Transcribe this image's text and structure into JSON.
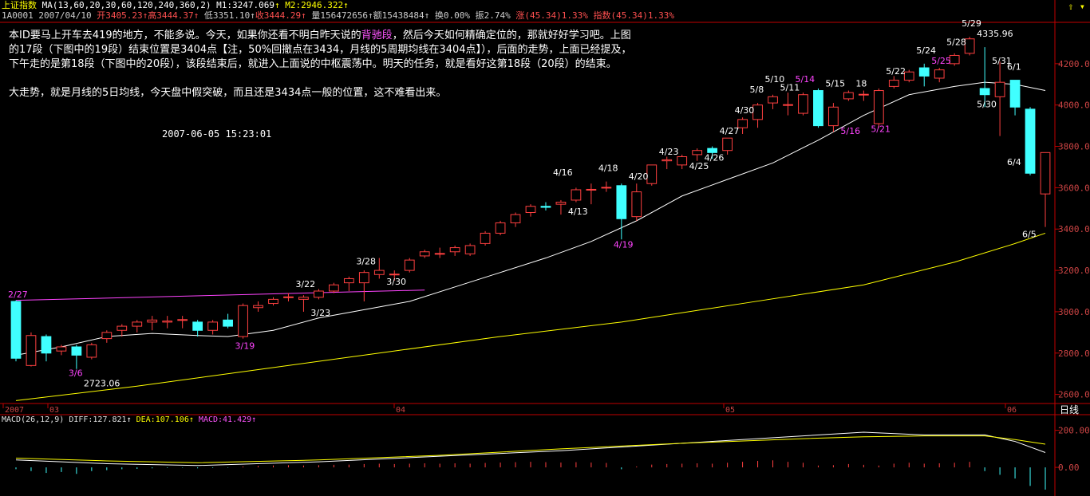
{
  "header": {
    "index_name": "上证指数",
    "ma_label": "MA(13,60,20,30,60,120,240,360,2)",
    "m1": "M1:3247.069",
    "m2": "M2:2946.322",
    "code": "1A0001",
    "date": "2007/04/10",
    "open": "开3405.23",
    "high": "高3444.37",
    "low": "低3351.10",
    "close": "收3444.29",
    "volume": "量156472656",
    "amount": "额15438484",
    "turnover": "换0.00%",
    "amplitude": "振2.74%",
    "change": "涨(45.34)1.33%",
    "index_change": "指数(45.34)1.33%"
  },
  "commentary": {
    "p1_a": "本ID要马上开车去419的地方，不能多说。今天，如果你还看不明白昨天说的",
    "p1_hl": "背驰段",
    "p1_b": "，然后今天如何精确定位的，那就好好学习吧。上图的17段（下图中的19段）结束位置是3404点【注，50%回撤点在3434，月线的5周期均线在3404点】），后面的走势，上面已经提及，下午走的是第18段（下图中的20段），该段结束后，就进入上面说的中枢震荡中。明天的任务，就是看好这第18段（20段）的结束。",
    "p2": "大走势，就是月线的5日均线，今天盘中假突破，而且还是3434点一般的位置，这不难看出来。",
    "timestamp": "2007-06-05 15:23:01"
  },
  "macd_header": {
    "label": "MACD(26,12,9)",
    "diff": "DIFF:127.821",
    "dea": "DEA:107.106",
    "macd": "MACD:41.429"
  },
  "period_label": "日线",
  "colors": {
    "up": "#ff4040",
    "down": "#40ffff",
    "ma_white": "#ffffff",
    "ma_yellow": "#ffff00",
    "trendline": "#ff44ff",
    "axis": "#c00000"
  },
  "chart_data": {
    "type": "candlestick",
    "ylim": [
      2560,
      4400
    ],
    "y_ticks": [
      2600,
      2800,
      3000,
      3200,
      3400,
      3600,
      3800,
      4000,
      4200
    ],
    "y_tick_labels": [
      "2600.00",
      "2800.00",
      "3000.00",
      "3200.00",
      "3400.00",
      "3600.00",
      "3800.00",
      "4000.00",
      "4200.00"
    ],
    "x_labels": [
      "2007",
      "03",
      "04",
      "05",
      "06"
    ],
    "candles": [
      {
        "o": 3050,
        "h": 3055,
        "l": 2760,
        "c": 2775
      },
      {
        "o": 2740,
        "h": 2900,
        "l": 2735,
        "c": 2885
      },
      {
        "o": 2880,
        "h": 2890,
        "l": 2760,
        "c": 2800
      },
      {
        "o": 2810,
        "h": 2840,
        "l": 2790,
        "c": 2830
      },
      {
        "o": 2830,
        "h": 2840,
        "l": 2723,
        "c": 2790
      },
      {
        "o": 2780,
        "h": 2850,
        "l": 2770,
        "c": 2840
      },
      {
        "o": 2870,
        "h": 2910,
        "l": 2850,
        "c": 2900
      },
      {
        "o": 2910,
        "h": 2940,
        "l": 2880,
        "c": 2930
      },
      {
        "o": 2930,
        "h": 2960,
        "l": 2900,
        "c": 2950
      },
      {
        "o": 2950,
        "h": 2980,
        "l": 2910,
        "c": 2960
      },
      {
        "o": 2950,
        "h": 2980,
        "l": 2920,
        "c": 2955
      },
      {
        "o": 2960,
        "h": 2980,
        "l": 2920,
        "c": 2962
      },
      {
        "o": 2950,
        "h": 2960,
        "l": 2880,
        "c": 2910
      },
      {
        "o": 2910,
        "h": 2960,
        "l": 2890,
        "c": 2950
      },
      {
        "o": 2960,
        "h": 2990,
        "l": 2920,
        "c": 2930
      },
      {
        "o": 2880,
        "h": 3040,
        "l": 2870,
        "c": 3030
      },
      {
        "o": 3020,
        "h": 3050,
        "l": 3000,
        "c": 3030
      },
      {
        "o": 3040,
        "h": 3070,
        "l": 3030,
        "c": 3060
      },
      {
        "o": 3070,
        "h": 3090,
        "l": 3050,
        "c": 3072
      },
      {
        "o": 3060,
        "h": 3080,
        "l": 3000,
        "c": 3070
      },
      {
        "o": 3070,
        "h": 3110,
        "l": 3060,
        "c": 3100
      },
      {
        "o": 3100,
        "h": 3140,
        "l": 3090,
        "c": 3130
      },
      {
        "o": 3140,
        "h": 3170,
        "l": 3100,
        "c": 3160
      },
      {
        "o": 3140,
        "h": 3200,
        "l": 3050,
        "c": 3190
      },
      {
        "o": 3180,
        "h": 3260,
        "l": 3160,
        "c": 3200
      },
      {
        "o": 3180,
        "h": 3200,
        "l": 3150,
        "c": 3182
      },
      {
        "o": 3200,
        "h": 3260,
        "l": 3190,
        "c": 3250
      },
      {
        "o": 3270,
        "h": 3300,
        "l": 3260,
        "c": 3290
      },
      {
        "o": 3280,
        "h": 3310,
        "l": 3260,
        "c": 3282
      },
      {
        "o": 3290,
        "h": 3320,
        "l": 3270,
        "c": 3310
      },
      {
        "o": 3280,
        "h": 3330,
        "l": 3270,
        "c": 3320
      },
      {
        "o": 3330,
        "h": 3390,
        "l": 3320,
        "c": 3380
      },
      {
        "o": 3380,
        "h": 3440,
        "l": 3370,
        "c": 3430
      },
      {
        "o": 3430,
        "h": 3480,
        "l": 3410,
        "c": 3470
      },
      {
        "o": 3480,
        "h": 3520,
        "l": 3460,
        "c": 3510
      },
      {
        "o": 3510,
        "h": 3530,
        "l": 3490,
        "c": 3505
      },
      {
        "o": 3520,
        "h": 3540,
        "l": 3470,
        "c": 3530
      },
      {
        "o": 3540,
        "h": 3600,
        "l": 3530,
        "c": 3590
      },
      {
        "o": 3590,
        "h": 3620,
        "l": 3520,
        "c": 3592
      },
      {
        "o": 3600,
        "h": 3630,
        "l": 3580,
        "c": 3602
      },
      {
        "o": 3610,
        "h": 3620,
        "l": 3350,
        "c": 3450
      },
      {
        "o": 3460,
        "h": 3620,
        "l": 3440,
        "c": 3580
      },
      {
        "o": 3620,
        "h": 3710,
        "l": 3610,
        "c": 3710
      },
      {
        "o": 3730,
        "h": 3750,
        "l": 3690,
        "c": 3735
      },
      {
        "o": 3710,
        "h": 3760,
        "l": 3690,
        "c": 3750
      },
      {
        "o": 3760,
        "h": 3790,
        "l": 3730,
        "c": 3780
      },
      {
        "o": 3790,
        "h": 3800,
        "l": 3740,
        "c": 3770
      },
      {
        "o": 3780,
        "h": 3840,
        "l": 3760,
        "c": 3840
      },
      {
        "o": 3890,
        "h": 3940,
        "l": 3860,
        "c": 3930
      },
      {
        "o": 3930,
        "h": 4010,
        "l": 3890,
        "c": 4000
      },
      {
        "o": 4010,
        "h": 4050,
        "l": 3980,
        "c": 4040
      },
      {
        "o": 4000,
        "h": 4060,
        "l": 3950,
        "c": 4002
      },
      {
        "o": 3960,
        "h": 4060,
        "l": 3950,
        "c": 4050
      },
      {
        "o": 4070,
        "h": 4080,
        "l": 3890,
        "c": 3900
      },
      {
        "o": 3900,
        "h": 4010,
        "l": 3870,
        "c": 3990
      },
      {
        "o": 4030,
        "h": 4070,
        "l": 4020,
        "c": 4060
      },
      {
        "o": 4050,
        "h": 4070,
        "l": 4020,
        "c": 4052
      },
      {
        "o": 3910,
        "h": 4080,
        "l": 3890,
        "c": 4070
      },
      {
        "o": 4090,
        "h": 4140,
        "l": 4080,
        "c": 4120
      },
      {
        "o": 4120,
        "h": 4170,
        "l": 4110,
        "c": 4160
      },
      {
        "o": 4180,
        "h": 4200,
        "l": 4090,
        "c": 4140
      },
      {
        "o": 4130,
        "h": 4180,
        "l": 4110,
        "c": 4170
      },
      {
        "o": 4200,
        "h": 4250,
        "l": 4190,
        "c": 4240
      },
      {
        "o": 4250,
        "h": 4330,
        "l": 4240,
        "c": 4320
      },
      {
        "o": 4080,
        "h": 4280,
        "l": 3990,
        "c": 4050
      },
      {
        "o": 4040,
        "h": 4210,
        "l": 3850,
        "c": 4110
      },
      {
        "o": 4120,
        "h": 4120,
        "l": 3950,
        "c": 3990
      },
      {
        "o": 3980,
        "h": 3990,
        "l": 3660,
        "c": 3670
      },
      {
        "o": 3570,
        "h": 3770,
        "l": 3410,
        "c": 3770
      }
    ],
    "ma_white": [
      [
        0,
        2790
      ],
      [
        3,
        2830
      ],
      [
        6,
        2880
      ],
      [
        9,
        2895
      ],
      [
        12,
        2885
      ],
      [
        14,
        2880
      ],
      [
        17,
        2910
      ],
      [
        20,
        2970
      ],
      [
        23,
        3010
      ],
      [
        26,
        3050
      ],
      [
        29,
        3120
      ],
      [
        32,
        3190
      ],
      [
        35,
        3260
      ],
      [
        38,
        3340
      ],
      [
        41,
        3440
      ],
      [
        44,
        3560
      ],
      [
        47,
        3640
      ],
      [
        50,
        3720
      ],
      [
        53,
        3830
      ],
      [
        56,
        3950
      ],
      [
        59,
        4050
      ],
      [
        62,
        4090
      ],
      [
        64,
        4110
      ],
      [
        66,
        4100
      ],
      [
        68,
        4070
      ]
    ],
    "ma_yellow": [
      [
        0,
        2570
      ],
      [
        8,
        2640
      ],
      [
        16,
        2720
      ],
      [
        24,
        2800
      ],
      [
        32,
        2880
      ],
      [
        40,
        2950
      ],
      [
        48,
        3040
      ],
      [
        56,
        3130
      ],
      [
        62,
        3240
      ],
      [
        66,
        3330
      ],
      [
        68,
        3380
      ]
    ],
    "trendline": [
      [
        0,
        3055
      ],
      [
        27,
        3105
      ]
    ],
    "annotations": [
      {
        "i": 0,
        "text": "2/27",
        "y": 3070,
        "color": "#ff44ff"
      },
      {
        "i": 4,
        "text": "3/6",
        "y": 2690,
        "color": "#ff44ff"
      },
      {
        "i": 5,
        "text": "2723.06",
        "y": 2640,
        "color": "#ffffff"
      },
      {
        "i": 15,
        "text": "3/19",
        "y": 2820,
        "color": "#ff44ff"
      },
      {
        "i": 19,
        "text": "3/22",
        "y": 3120,
        "color": "#ffffff"
      },
      {
        "i": 20,
        "text": "3/23",
        "y": 2980,
        "color": "#ffffff"
      },
      {
        "i": 23,
        "text": "3/28",
        "y": 3230,
        "color": "#ffffff"
      },
      {
        "i": 25,
        "text": "3/30",
        "y": 3130,
        "color": "#ffffff"
      },
      {
        "i": 37,
        "text": "4/13",
        "y": 3470,
        "color": "#ffffff"
      },
      {
        "i": 36,
        "text": "4/16",
        "y": 3660,
        "color": "#ffffff"
      },
      {
        "i": 39,
        "text": "4/18",
        "y": 3680,
        "color": "#ffffff"
      },
      {
        "i": 40,
        "text": "4/19",
        "y": 3310,
        "color": "#ff44ff"
      },
      {
        "i": 41,
        "text": "4/20",
        "y": 3640,
        "color": "#ffffff"
      },
      {
        "i": 43,
        "text": "4/23",
        "y": 3760,
        "color": "#ffffff"
      },
      {
        "i": 45,
        "text": "4/25",
        "y": 3690,
        "color": "#ffffff"
      },
      {
        "i": 46,
        "text": "4/26",
        "y": 3730,
        "color": "#ffffff"
      },
      {
        "i": 47,
        "text": "4/27",
        "y": 3860,
        "color": "#ffffff"
      },
      {
        "i": 48,
        "text": "4/30",
        "y": 3960,
        "color": "#ffffff"
      },
      {
        "i": 49,
        "text": "5/8",
        "y": 4060,
        "color": "#ffffff"
      },
      {
        "i": 50,
        "text": "5/10",
        "y": 4110,
        "color": "#ffffff"
      },
      {
        "i": 51,
        "text": "5/11",
        "y": 4070,
        "color": "#ffffff"
      },
      {
        "i": 52,
        "text": "5/14",
        "y": 4110,
        "color": "#ff44ff"
      },
      {
        "i": 54,
        "text": "5/15",
        "y": 4090,
        "color": "#ffffff"
      },
      {
        "i": 55,
        "text": "5/16",
        "y": 3860,
        "color": "#ff44ff"
      },
      {
        "i": 56,
        "text": "18",
        "y": 4090,
        "color": "#ffffff"
      },
      {
        "i": 57,
        "text": "5/21",
        "y": 3870,
        "color": "#ff44ff"
      },
      {
        "i": 58,
        "text": "5/22",
        "y": 4150,
        "color": "#ffffff"
      },
      {
        "i": 60,
        "text": "5/24",
        "y": 4250,
        "color": "#ffffff"
      },
      {
        "i": 61,
        "text": "5/25",
        "y": 4200,
        "color": "#ff44ff"
      },
      {
        "i": 62,
        "text": "5/28",
        "y": 4290,
        "color": "#ffffff"
      },
      {
        "i": 63,
        "text": "5/29",
        "y": 4380,
        "color": "#ffffff"
      },
      {
        "i": 64,
        "text": "4335.96",
        "y": 4330,
        "color": "#ffffff"
      },
      {
        "i": 65,
        "text": "5/31",
        "y": 4200,
        "color": "#ffffff"
      },
      {
        "i": 64,
        "text": "5/30",
        "y": 3990,
        "color": "#ffffff"
      },
      {
        "i": 66,
        "text": "6/1",
        "y": 4170,
        "color": "#ffffff"
      },
      {
        "i": 66,
        "text": "6/4",
        "y": 3710,
        "color": "#ffffff"
      },
      {
        "i": 67,
        "text": "6/5",
        "y": 3360,
        "color": "#ffffff"
      }
    ],
    "macd": {
      "ylim": [
        -120,
        250
      ],
      "y_ticks": [
        0,
        200
      ],
      "y_tick_labels": [
        "0.00",
        "200.00"
      ],
      "diff": [
        [
          0,
          40
        ],
        [
          6,
          20
        ],
        [
          12,
          10
        ],
        [
          20,
          30
        ],
        [
          28,
          60
        ],
        [
          36,
          90
        ],
        [
          44,
          130
        ],
        [
          52,
          170
        ],
        [
          56,
          190
        ],
        [
          60,
          175
        ],
        [
          64,
          175
        ],
        [
          66,
          140
        ],
        [
          68,
          80
        ]
      ],
      "dea": [
        [
          0,
          50
        ],
        [
          6,
          35
        ],
        [
          12,
          25
        ],
        [
          20,
          40
        ],
        [
          28,
          65
        ],
        [
          36,
          100
        ],
        [
          44,
          130
        ],
        [
          52,
          155
        ],
        [
          56,
          165
        ],
        [
          60,
          170
        ],
        [
          64,
          170
        ],
        [
          66,
          150
        ],
        [
          68,
          125
        ]
      ],
      "bars": [
        -10,
        -20,
        -30,
        -25,
        -35,
        -20,
        -15,
        -10,
        -8,
        -5,
        -3,
        -2,
        -5,
        -3,
        -2,
        5,
        8,
        10,
        12,
        10,
        12,
        14,
        15,
        18,
        20,
        18,
        20,
        22,
        20,
        22,
        20,
        24,
        26,
        28,
        30,
        28,
        26,
        28,
        26,
        24,
        -10,
        5,
        15,
        18,
        20,
        22,
        20,
        25,
        30,
        35,
        38,
        30,
        25,
        10,
        12,
        18,
        14,
        10,
        20,
        25,
        20,
        22,
        25,
        30,
        -20,
        -40,
        -60,
        -100,
        -120
      ]
    }
  }
}
